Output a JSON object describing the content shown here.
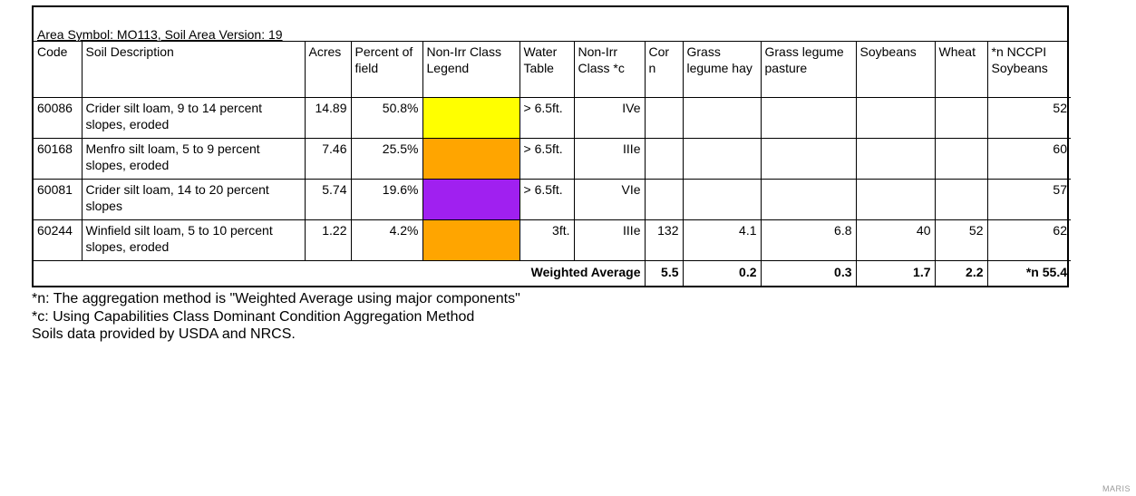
{
  "area_line": "Area Symbol: MO113, Soil Area Version: 19",
  "headers": {
    "code": "Code",
    "desc": "Soil Description",
    "acres": "Acres",
    "percent": "Percent of field",
    "legend": "Non-Irr Class Legend",
    "water": "Water Table",
    "class": "Non-Irr Class *c",
    "corn": "Cor n",
    "gl_hay": "Grass legume hay",
    "gl_pasture": "Grass legume pasture",
    "soybeans": "Soybeans",
    "wheat": "Wheat",
    "nccpi": "*n NCCPI Soybeans"
  },
  "rows": [
    {
      "code": "60086",
      "desc": "Crider silt loam, 9 to 14 percent slopes, eroded",
      "acres": "14.89",
      "percent": "50.8%",
      "color": "#ffff00",
      "water": "> 6.5ft.",
      "class": "IVe",
      "corn": "",
      "gl_hay": "",
      "gl_pasture": "",
      "soybeans": "",
      "wheat": "",
      "nccpi": "52"
    },
    {
      "code": "60168",
      "desc": "Menfro silt loam, 5 to 9 percent slopes, eroded",
      "acres": "7.46",
      "percent": "25.5%",
      "color": "#ffa500",
      "water": "> 6.5ft.",
      "class": "IIIe",
      "corn": "",
      "gl_hay": "",
      "gl_pasture": "",
      "soybeans": "",
      "wheat": "",
      "nccpi": "60"
    },
    {
      "code": "60081",
      "desc": "Crider silt loam, 14 to 20 percent slopes",
      "acres": "5.74",
      "percent": "19.6%",
      "color": "#a020f0",
      "water": "> 6.5ft.",
      "class": "VIe",
      "corn": "",
      "gl_hay": "",
      "gl_pasture": "",
      "soybeans": "",
      "wheat": "",
      "nccpi": "57"
    },
    {
      "code": "60244",
      "desc": "Winfield silt loam, 5 to 10 percent slopes, eroded",
      "acres": "1.22",
      "percent": "4.2%",
      "color": "#ffa500",
      "water": "3ft.",
      "class": "IIIe",
      "corn": "132",
      "gl_hay": "4.1",
      "gl_pasture": "6.8",
      "soybeans": "40",
      "wheat": "52",
      "nccpi": "62"
    }
  ],
  "weighted": {
    "label": "Weighted Average",
    "corn": "5.5",
    "gl_hay": "0.2",
    "gl_pasture": "0.3",
    "soybeans": "1.7",
    "wheat": "2.2",
    "nccpi": "*n 55.4"
  },
  "notes": [
    "*n: The aggregation method is \"Weighted Average using major components\"",
    "*c: Using Capabilities Class Dominant Condition Aggregation Method",
    "Soils data provided by USDA and NRCS."
  ],
  "watermark": "MARIS"
}
